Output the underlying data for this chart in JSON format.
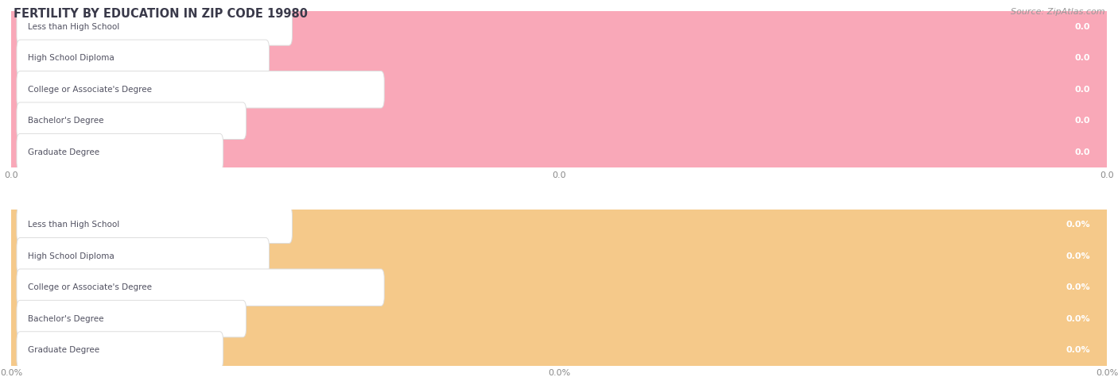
{
  "title": "FERTILITY BY EDUCATION IN ZIP CODE 19980",
  "source": "Source: ZipAtlas.com",
  "categories": [
    "Less than High School",
    "High School Diploma",
    "College or Associate's Degree",
    "Bachelor's Degree",
    "Graduate Degree"
  ],
  "top_values": [
    0.0,
    0.0,
    0.0,
    0.0,
    0.0
  ],
  "bottom_values": [
    0.0,
    0.0,
    0.0,
    0.0,
    0.0
  ],
  "top_bar_color": "#f9a8b8",
  "bottom_bar_color": "#f5c98a",
  "row_bg_even": "#efefef",
  "row_bg_odd": "#f7f7f7",
  "bar_bg_color": "#e8e8e8",
  "label_pill_color": "#ffffff",
  "label_pill_edge": "#dddddd",
  "label_text_color": "#505060",
  "value_text_color": "#ffffff",
  "grid_line_color": "#cccccc",
  "title_color": "#3a3a4a",
  "source_color": "#999999",
  "xtick_labels_top": [
    "0.0",
    "0.0",
    "0.0"
  ],
  "xtick_labels_bottom": [
    "0.0%",
    "0.0%",
    "0.0%"
  ],
  "xtick_color_top": "#c09090",
  "xtick_color_bottom": "#c0a070",
  "fig_width": 14.06,
  "fig_height": 4.75,
  "dpi": 100
}
